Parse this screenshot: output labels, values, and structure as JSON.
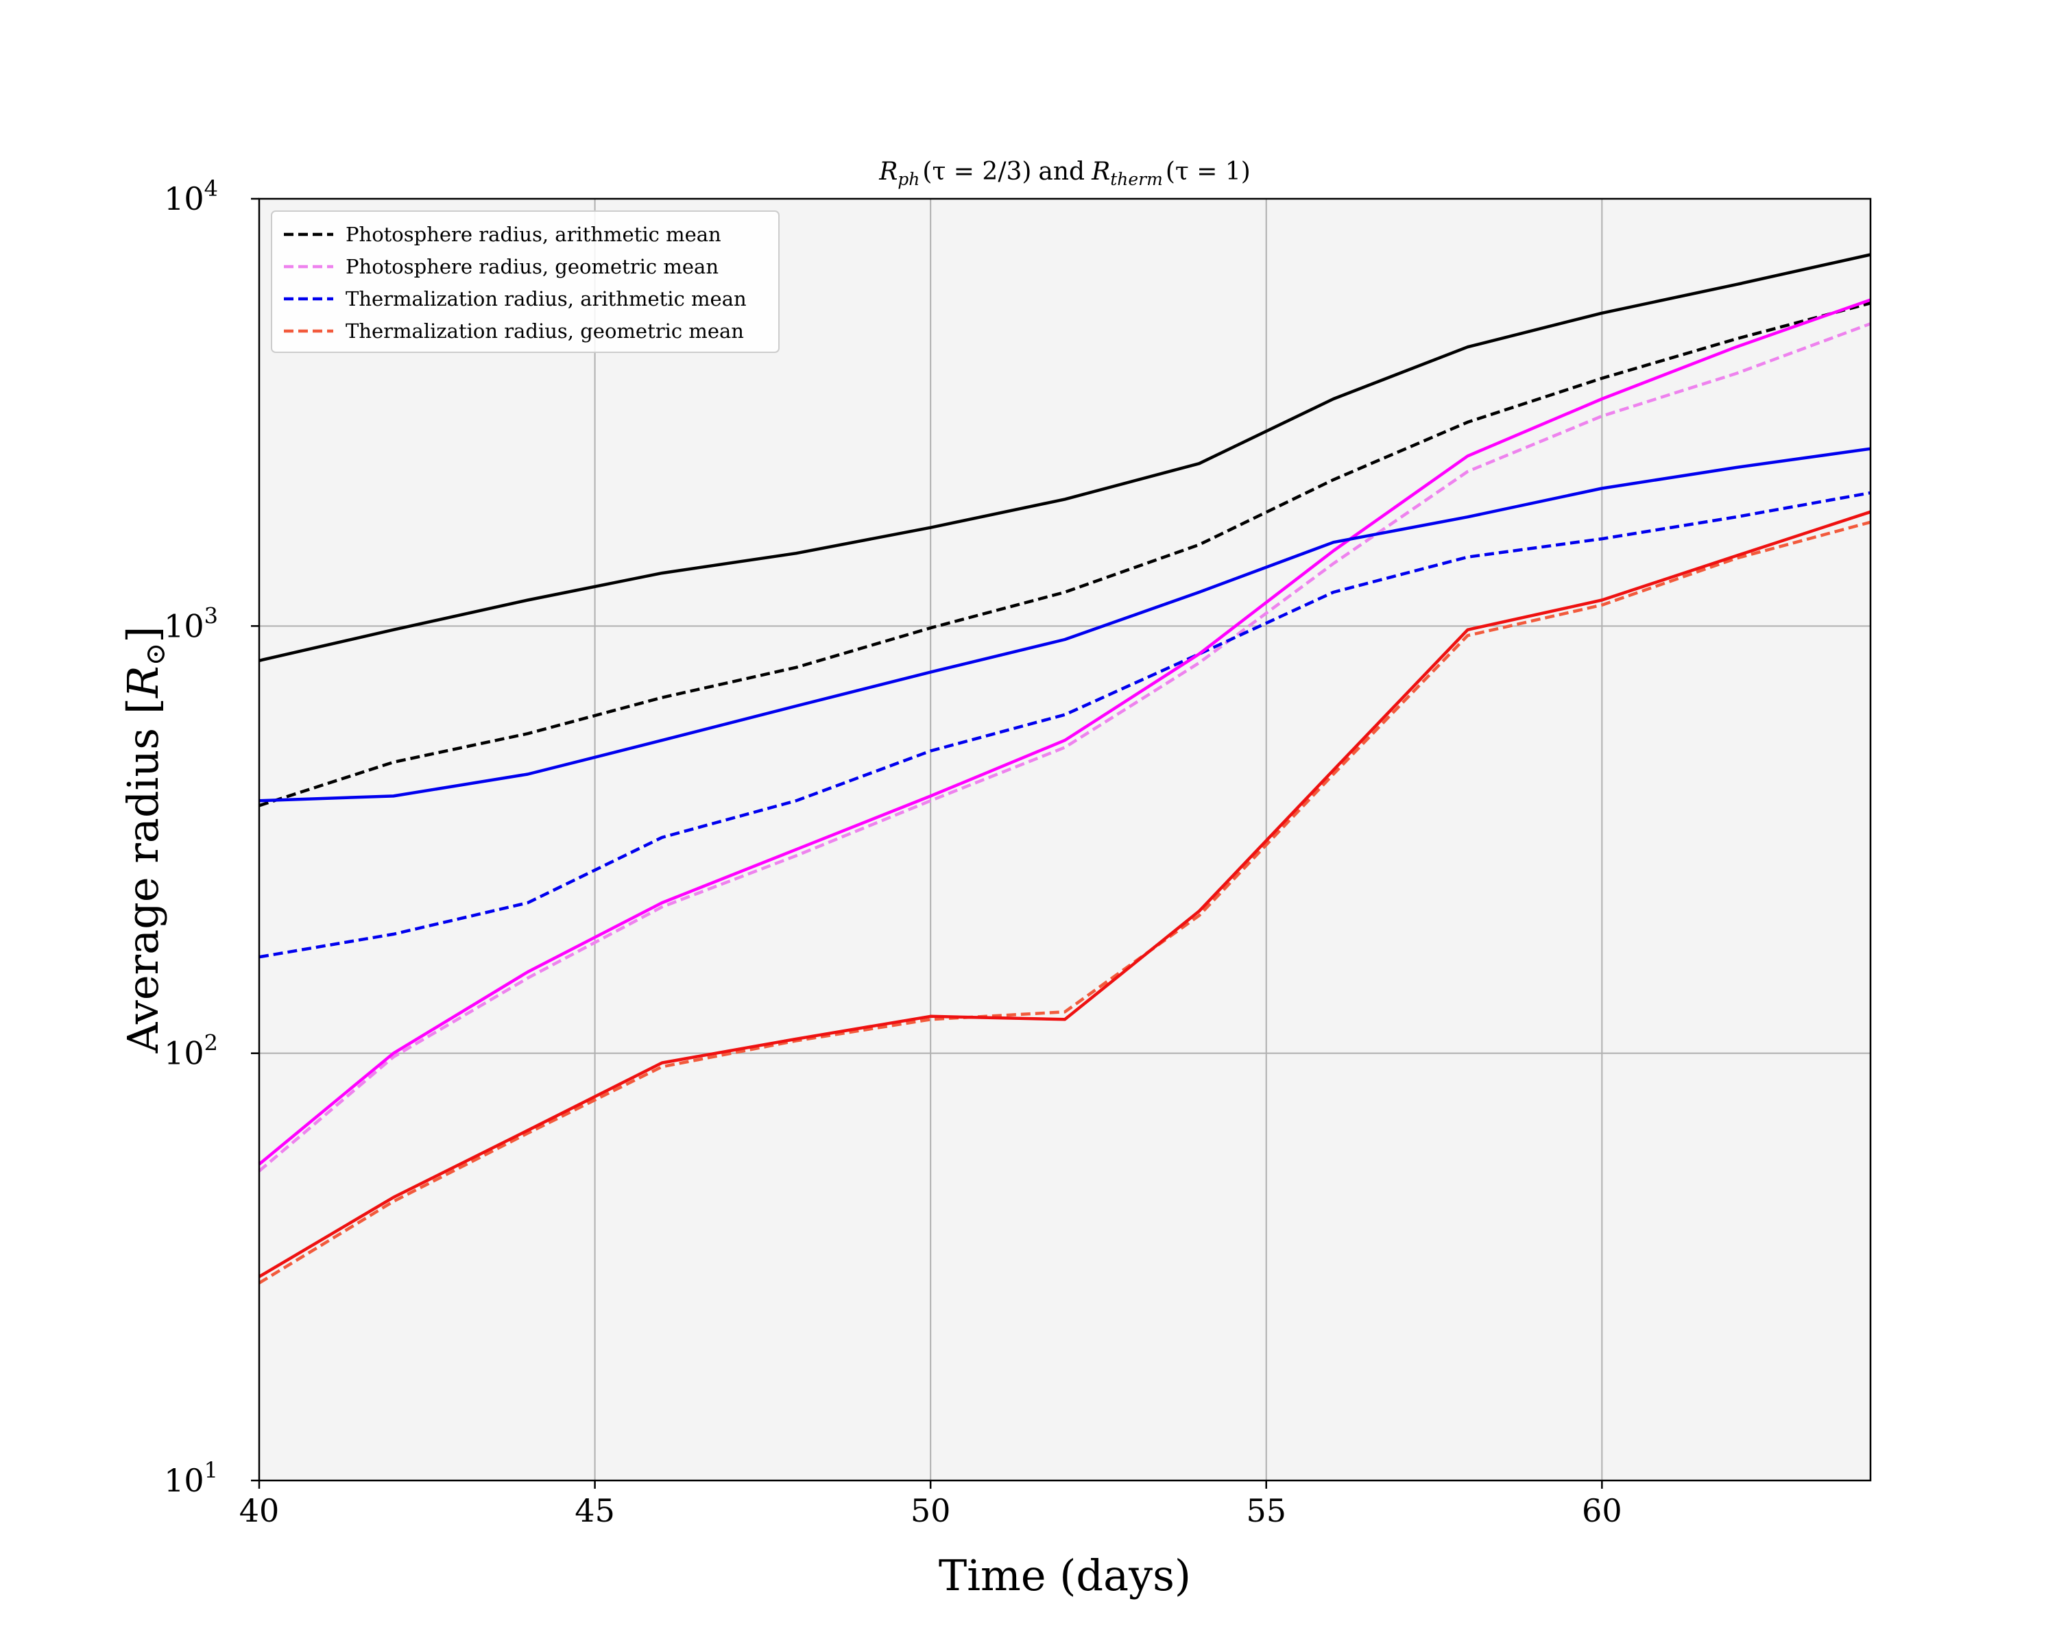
{
  "chart_data": {
    "type": "line",
    "title": "R_ph(τ = 2/3) and R_therm(τ = 1)",
    "title_parts": {
      "r_ph": "R",
      "ph_sub": "ph",
      "ph_arg": "(τ = 2/3)",
      "and": "and",
      "r_therm": "R",
      "therm_sub": "therm",
      "therm_arg": "(τ = 1)"
    },
    "xlabel": "Time (days)",
    "ylabel": "Average radius [R⊙]",
    "ylabel_parts": {
      "text": "Average radius [",
      "sym": "R",
      "sub": "⊙",
      "close": "]"
    },
    "xlim": [
      40,
      64
    ],
    "ylim": [
      10,
      10000
    ],
    "yscale": "log",
    "grid": true,
    "legend_position": "top-left",
    "x_ticks": [
      {
        "value": 40,
        "label": "40"
      },
      {
        "value": 45,
        "label": "45"
      },
      {
        "value": 50,
        "label": "50"
      },
      {
        "value": 55,
        "label": "55"
      },
      {
        "value": 60,
        "label": "60"
      }
    ],
    "y_ticks": [
      {
        "value": 10,
        "base": "10",
        "exp": "1"
      },
      {
        "value": 100,
        "base": "10",
        "exp": "2"
      },
      {
        "value": 1000,
        "base": "10",
        "exp": "3"
      },
      {
        "value": 10000,
        "base": "10",
        "exp": "4"
      }
    ],
    "x": [
      40,
      42,
      44,
      46,
      48,
      50,
      52,
      54,
      56,
      58,
      60,
      62,
      64
    ],
    "series": [
      {
        "name": "Photosphere radius, arithmetic mean",
        "legend": true,
        "color": "#000000",
        "dash": true,
        "values": [
          380,
          480,
          560,
          680,
          800,
          990,
          1200,
          1550,
          2200,
          3000,
          3800,
          4700,
          5700
        ]
      },
      {
        "name": "Photosphere radius, geometric mean",
        "legend": true,
        "color": "#ee82ee",
        "dash": true,
        "values": [
          53,
          98,
          150,
          220,
          290,
          390,
          520,
          820,
          1400,
          2300,
          3100,
          3900,
          5100
        ]
      },
      {
        "name": "Thermalization radius, arithmetic mean",
        "legend": true,
        "color": "#0000ee",
        "dash": true,
        "values": [
          168,
          190,
          225,
          320,
          390,
          510,
          620,
          860,
          1200,
          1450,
          1600,
          1800,
          2050
        ]
      },
      {
        "name": "Thermalization radius, geometric mean",
        "legend": true,
        "color": "#f25a3c",
        "dash": true,
        "values": [
          29,
          45,
          65,
          93,
          107,
          120,
          125,
          210,
          450,
          950,
          1120,
          1440,
          1750
        ]
      },
      {
        "legend": false,
        "color": "#000000",
        "dash": false,
        "values": [
          830,
          980,
          1150,
          1330,
          1480,
          1700,
          1980,
          2400,
          3400,
          4500,
          5400,
          6300,
          7400
        ]
      },
      {
        "legend": false,
        "color": "#ff00ff",
        "dash": false,
        "values": [
          55,
          100,
          155,
          225,
          300,
          400,
          540,
          860,
          1500,
          2500,
          3400,
          4500,
          5800
        ]
      },
      {
        "legend": false,
        "color": "#0000ee",
        "dash": false,
        "values": [
          390,
          400,
          450,
          540,
          650,
          780,
          930,
          1200,
          1570,
          1800,
          2100,
          2350,
          2600
        ]
      },
      {
        "legend": false,
        "color": "#ee1111",
        "dash": false,
        "values": [
          30,
          46,
          66,
          95,
          108,
          122,
          120,
          215,
          460,
          980,
          1150,
          1460,
          1850
        ]
      }
    ]
  }
}
